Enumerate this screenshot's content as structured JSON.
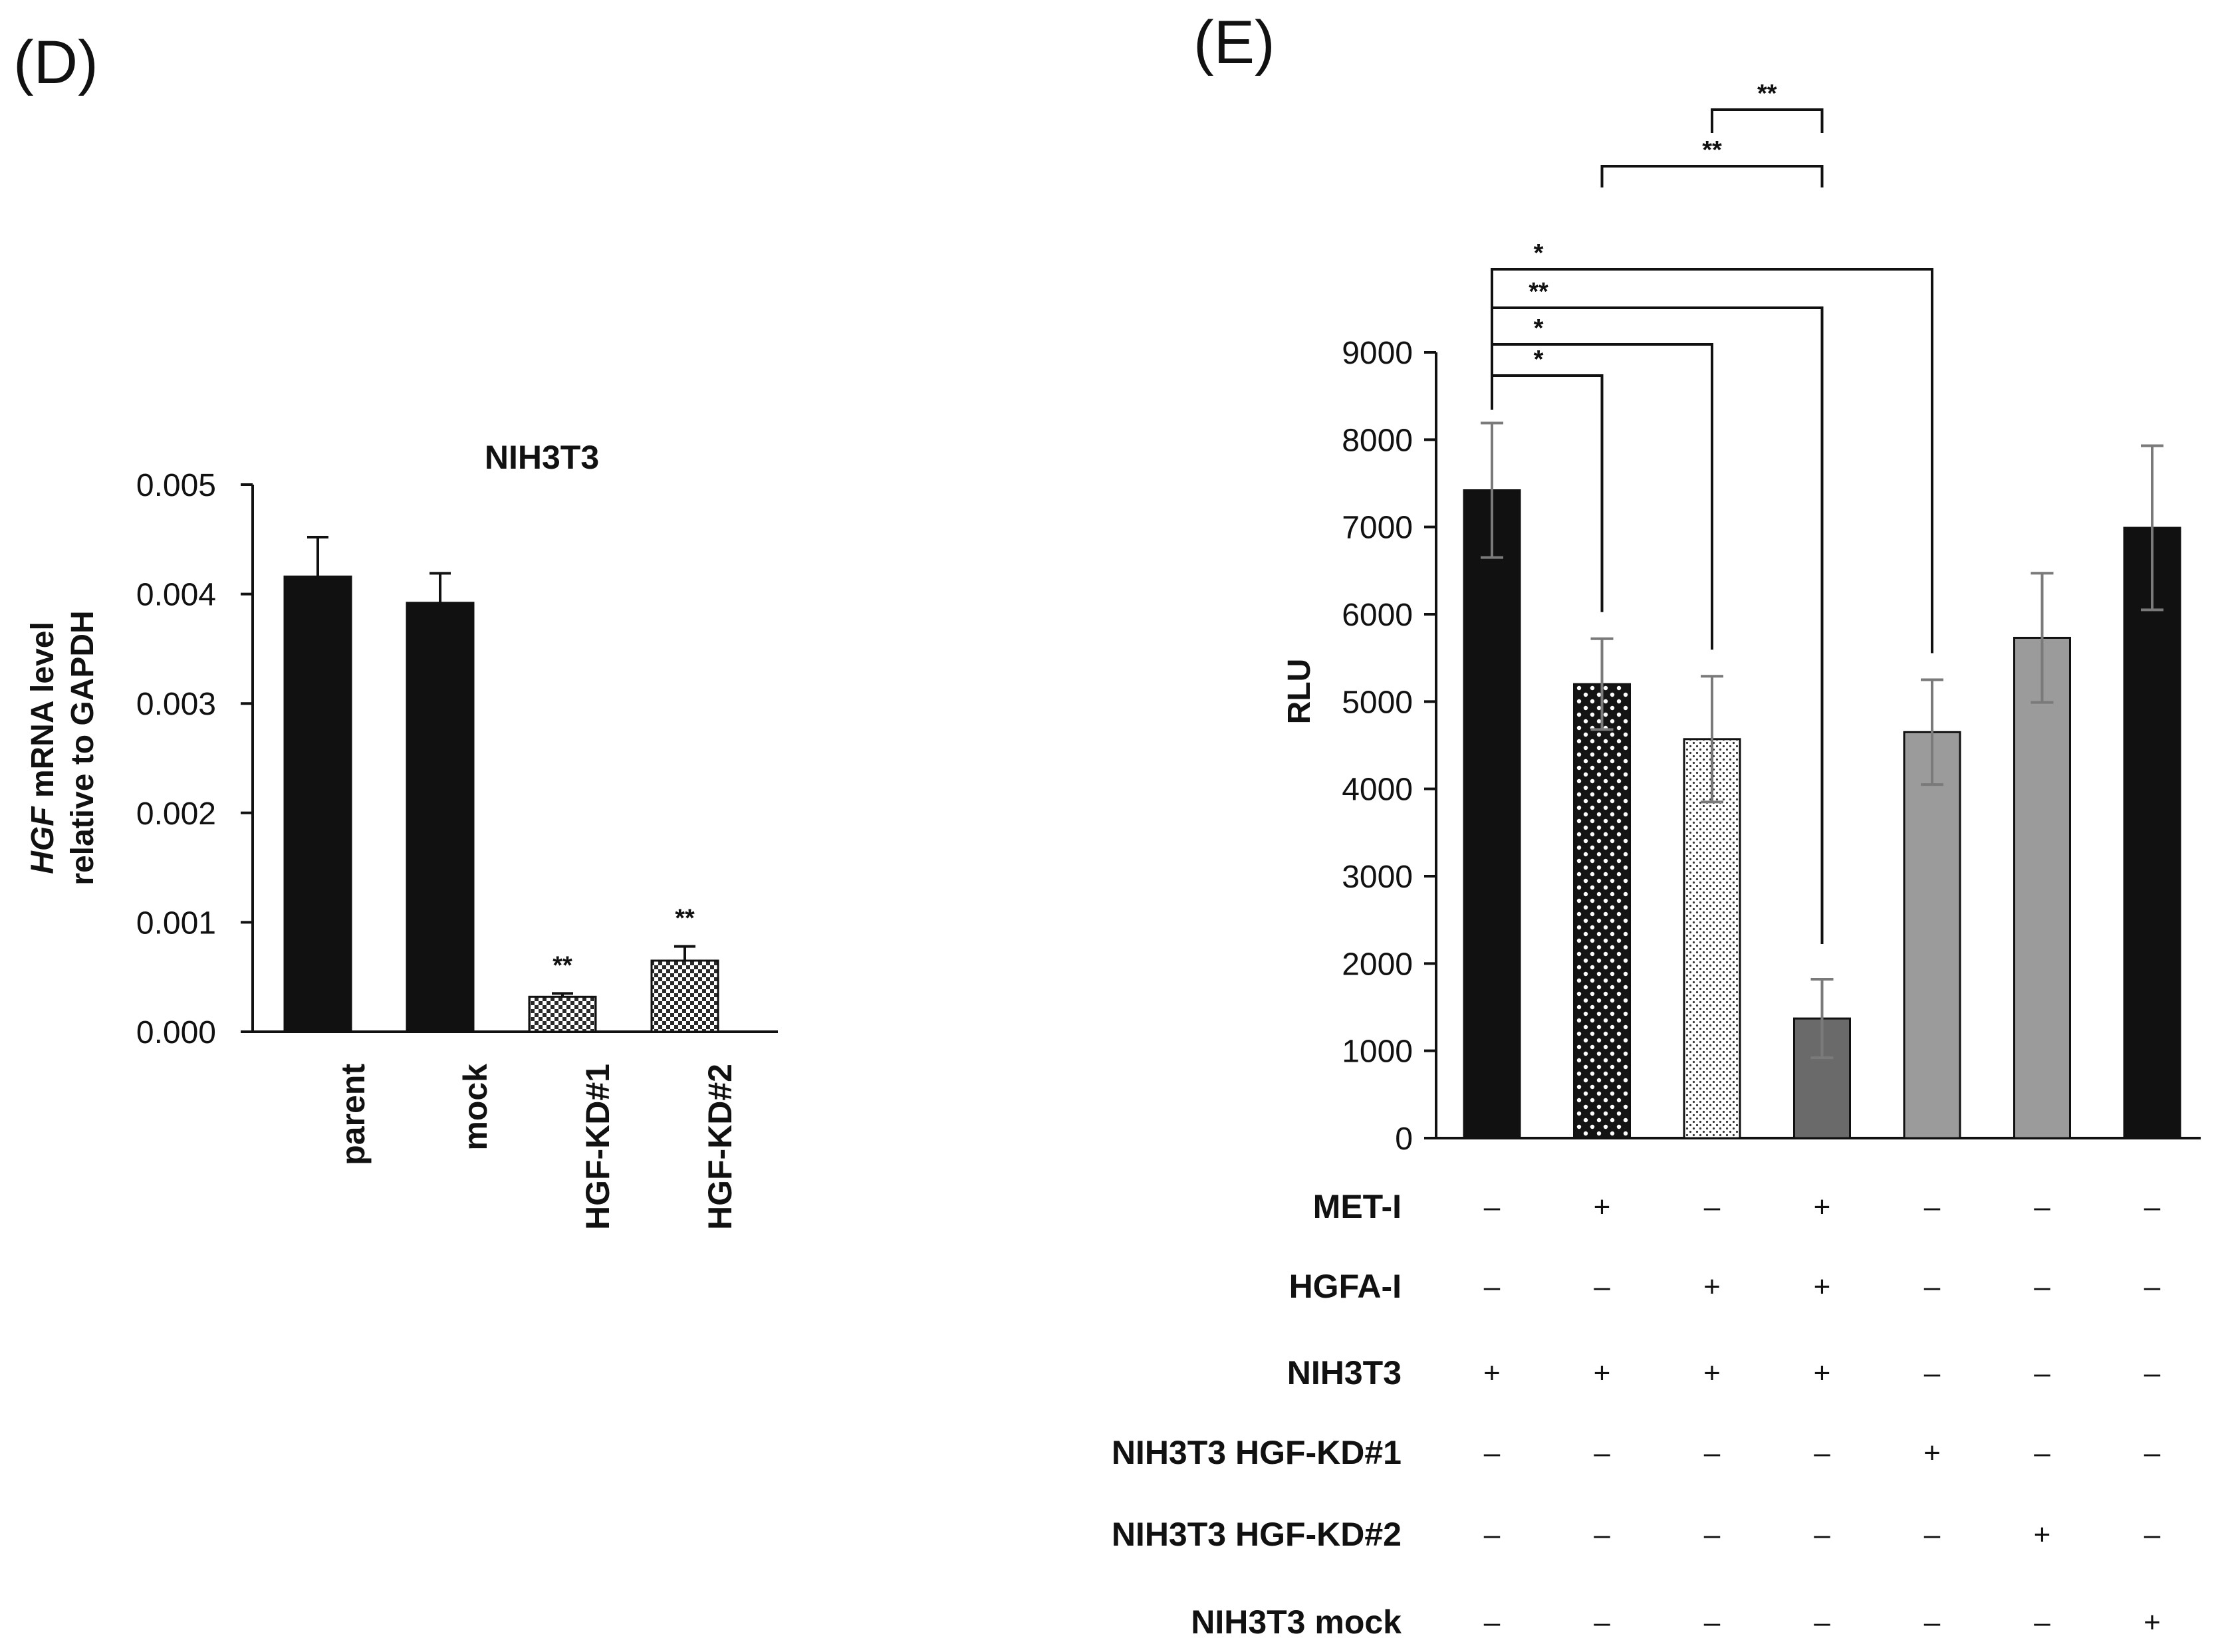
{
  "chart_data": [
    {
      "panel": "(D)",
      "type": "bar",
      "title": "NIH3T3",
      "ylabel_italic": "HGF",
      "ylabel_rest": " mRNA level",
      "ylabel_line2": "relative to GAPDH",
      "ylim": [
        0,
        0.005
      ],
      "yticks": [
        "0.000",
        "0.001",
        "0.002",
        "0.003",
        "0.004",
        "0.005"
      ],
      "categories": [
        "parent",
        "mock",
        "HGF-KD#1",
        "HGF-KD#2"
      ],
      "values": [
        0.00416,
        0.00392,
        0.00032,
        0.00065
      ],
      "errors": [
        0.00036,
        0.00027,
        3e-05,
        0.00013
      ],
      "fills": [
        "solid",
        "solid",
        "checker",
        "checker"
      ],
      "significance": [
        "",
        "",
        "**",
        "**"
      ]
    },
    {
      "panel": "(E)",
      "type": "bar",
      "ylabel": "RLU",
      "ylim": [
        0,
        9000
      ],
      "yticks": [
        "0",
        "1000",
        "2000",
        "3000",
        "4000",
        "5000",
        "6000",
        "7000",
        "8000",
        "9000"
      ],
      "values": [
        7420,
        5200,
        4570,
        1370,
        4650,
        5730,
        6990
      ],
      "errors": [
        770,
        520,
        720,
        450,
        600,
        740,
        940
      ],
      "fills": [
        "black",
        "dots",
        "fine-dots",
        "darkgray",
        "gray",
        "gray",
        "black"
      ],
      "brackets": [
        {
          "from": 3,
          "to": 4,
          "label": "**"
        },
        {
          "from": 2,
          "to": 4,
          "label": "**"
        },
        {
          "from": 1,
          "to": 5,
          "label": "*"
        },
        {
          "from": 1,
          "to": 4,
          "label": "**"
        },
        {
          "from": 1,
          "to": 3,
          "label": "*"
        },
        {
          "from": 1,
          "to": 2,
          "label": "*"
        }
      ],
      "conditions": [
        {
          "label": "MET-I",
          "signs": [
            "–",
            "+",
            "–",
            "+",
            "–",
            "–",
            "–"
          ]
        },
        {
          "label": "HGFA-I",
          "signs": [
            "–",
            "–",
            "+",
            "+",
            "–",
            "–",
            "–"
          ]
        },
        {
          "label": "NIH3T3",
          "signs": [
            "+",
            "+",
            "+",
            "+",
            "–",
            "–",
            "–"
          ]
        },
        {
          "label": "NIH3T3 HGF-KD#1",
          "signs": [
            "–",
            "–",
            "–",
            "–",
            "+",
            "–",
            "–"
          ]
        },
        {
          "label": "NIH3T3 HGF-KD#2",
          "signs": [
            "–",
            "–",
            "–",
            "–",
            "–",
            "+",
            "–"
          ]
        },
        {
          "label": "NIH3T3 mock",
          "signs": [
            "–",
            "–",
            "–",
            "–",
            "–",
            "–",
            "+"
          ]
        }
      ]
    }
  ],
  "colors": {
    "black": "#111111",
    "darkgray": "#6a6a6a",
    "gray": "#9b9b9b",
    "errorbar_gray": "#7a7a7a"
  }
}
